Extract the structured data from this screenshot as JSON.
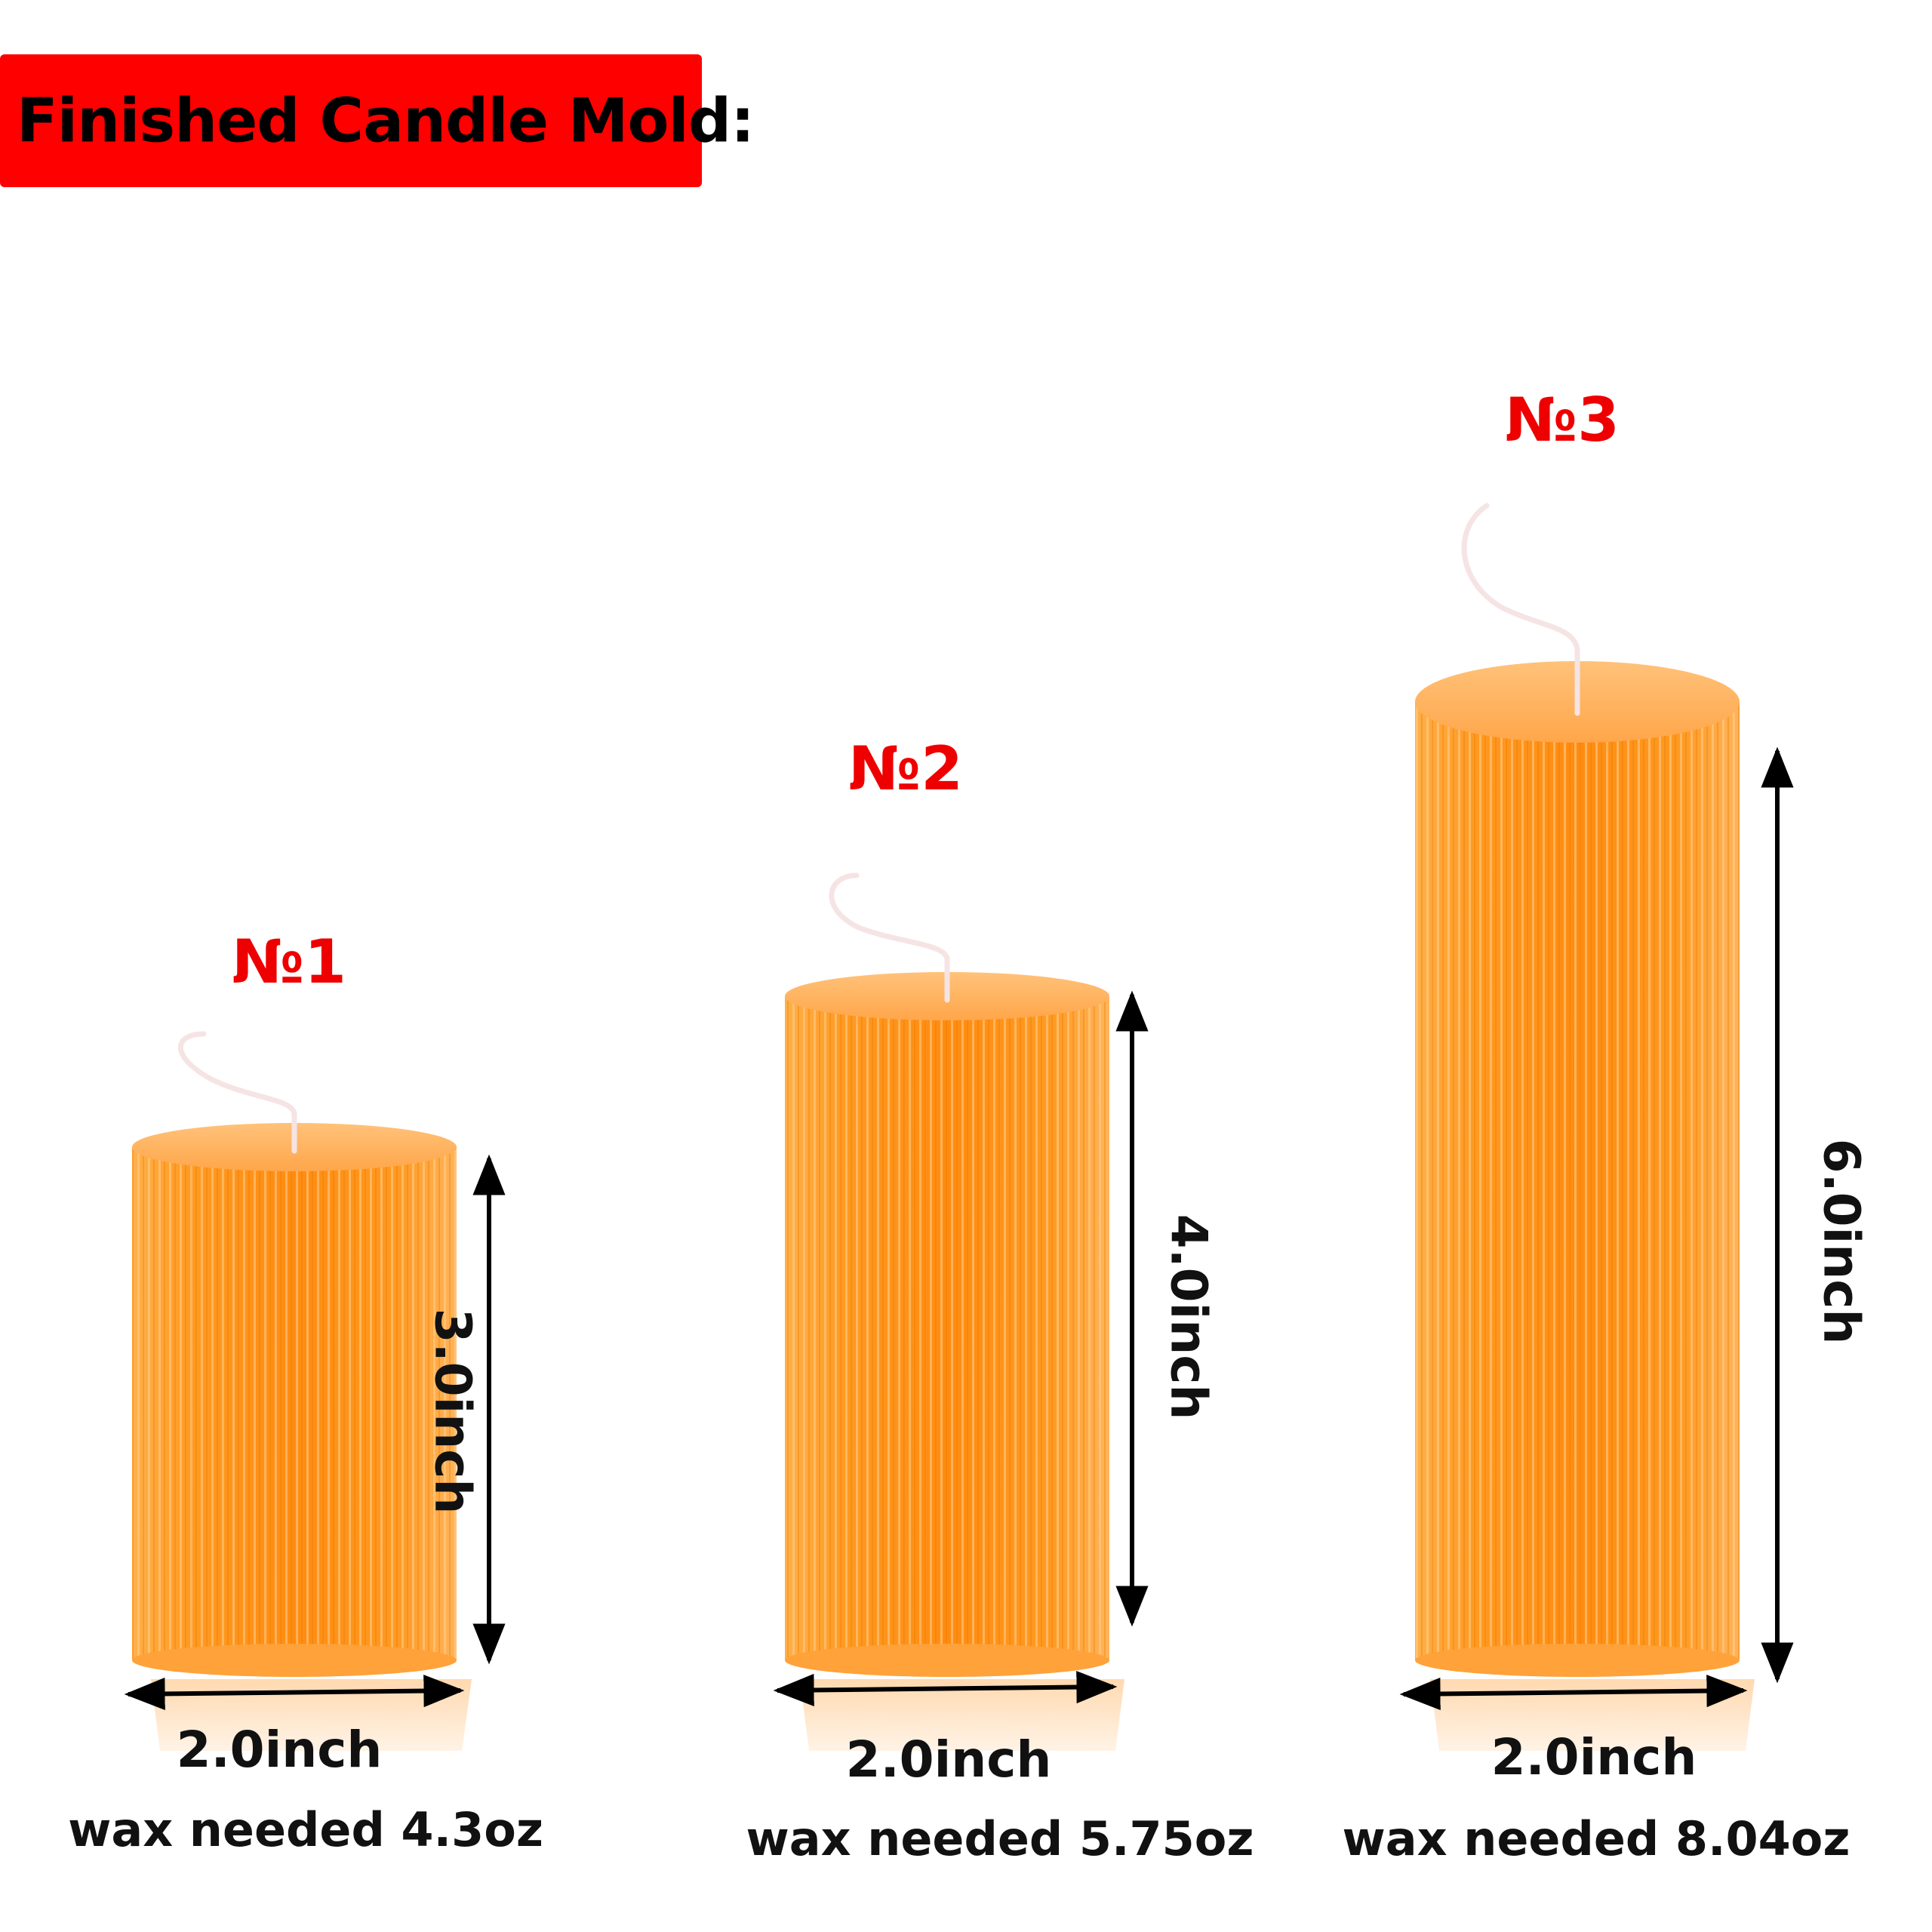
{
  "banner": {
    "title": "Finished Candle Mold:",
    "color": "#fe0000"
  },
  "accent_color": "#ee0000",
  "candle_color": "#ff9a22",
  "candles": [
    {
      "number": "№1",
      "height": "3.0inch",
      "diameter": "2.0inch",
      "wax": "wax needed 4.3oz"
    },
    {
      "number": "№2",
      "height": "4.0inch",
      "diameter": "2.0inch",
      "wax": "wax needed 5.75oz"
    },
    {
      "number": "№3",
      "height": "6.0inch",
      "diameter": "2.0inch",
      "wax": "wax needed 8.04oz"
    }
  ]
}
